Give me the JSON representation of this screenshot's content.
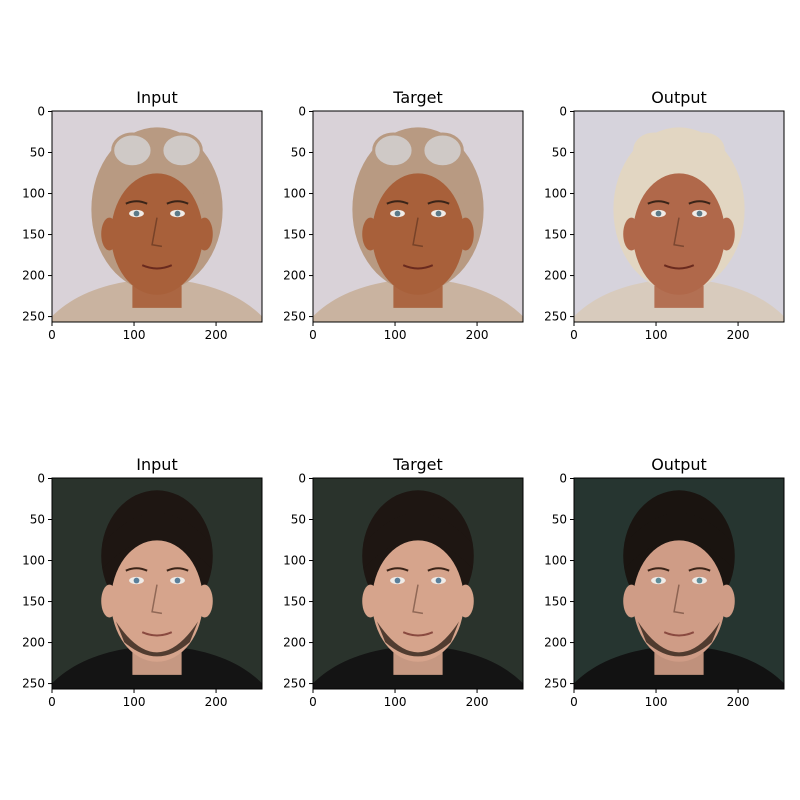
{
  "figure": {
    "rows": [
      {
        "panels": [
          {
            "title": "Input",
            "palette": {
              "bg": "#d9d2d8",
              "headgear": "#b89a82",
              "skin": "#a8603a",
              "goggles": "#cfc9c6",
              "jacket": "#c9b3a0"
            }
          },
          {
            "title": "Target",
            "palette": {
              "bg": "#d9d2d8",
              "headgear": "#b89a82",
              "skin": "#a8603a",
              "goggles": "#cfc9c6",
              "jacket": "#c9b3a0"
            }
          },
          {
            "title": "Output",
            "palette": {
              "bg": "#d6d3dc",
              "headgear": "#e2d6c2",
              "skin": "#b0684a",
              "goggles": "#e2d6c2",
              "jacket": "#d8cbbd"
            }
          }
        ]
      },
      {
        "panels": [
          {
            "title": "Input",
            "palette": {
              "bg": "#2a332c",
              "headgear": "#1e1612",
              "skin": "#d6a48c",
              "goggles": "#5a7f9a",
              "jacket": "#141414"
            }
          },
          {
            "title": "Target",
            "palette": {
              "bg": "#2a332c",
              "headgear": "#1e1612",
              "skin": "#d6a48c",
              "goggles": "#5a7f9a",
              "jacket": "#141414"
            }
          },
          {
            "title": "Output",
            "palette": {
              "bg": "#263530",
              "headgear": "#1a1410",
              "skin": "#cf9c86",
              "goggles": "#5f8c98",
              "jacket": "#121212"
            }
          }
        ]
      }
    ],
    "x_ticks": [
      "0",
      "100",
      "200"
    ],
    "y_ticks": [
      "0",
      "50",
      "100",
      "150",
      "200",
      "250"
    ]
  }
}
